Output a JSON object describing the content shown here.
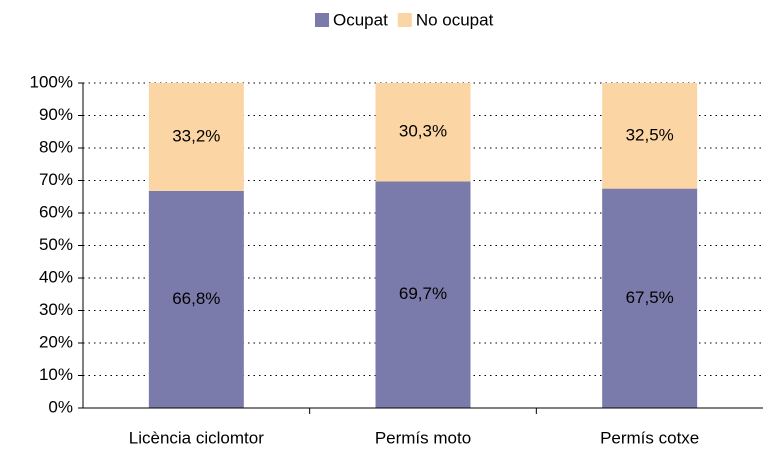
{
  "chart_data": {
    "type": "stacked_bar",
    "categories": [
      "Licència ciclomtor",
      "Permís moto",
      "Permís cotxe"
    ],
    "series": [
      {
        "name": "Ocupat",
        "color": "#7b7bab",
        "values": [
          66.8,
          69.7,
          67.5
        ],
        "value_labels": [
          "66,8%",
          "69,7%",
          "67,5%"
        ]
      },
      {
        "name": "No ocupat",
        "color": "#fcd5a5",
        "values": [
          33.2,
          30.3,
          32.5
        ],
        "value_labels": [
          "33,2%",
          "30,3%",
          "32,5%"
        ]
      }
    ],
    "ylim": [
      0,
      100
    ],
    "yticks": [
      {
        "value": 0,
        "label": "0%"
      },
      {
        "value": 10,
        "label": "10%"
      },
      {
        "value": 20,
        "label": "20%"
      },
      {
        "value": 30,
        "label": "30%"
      },
      {
        "value": 40,
        "label": "40%"
      },
      {
        "value": 50,
        "label": "50%"
      },
      {
        "value": 60,
        "label": "60%"
      },
      {
        "value": 70,
        "label": "70%"
      },
      {
        "value": 80,
        "label": "80%"
      },
      {
        "value": 90,
        "label": "90%"
      },
      {
        "value": 100,
        "label": "100%"
      }
    ],
    "grid": true,
    "legend": "top"
  }
}
